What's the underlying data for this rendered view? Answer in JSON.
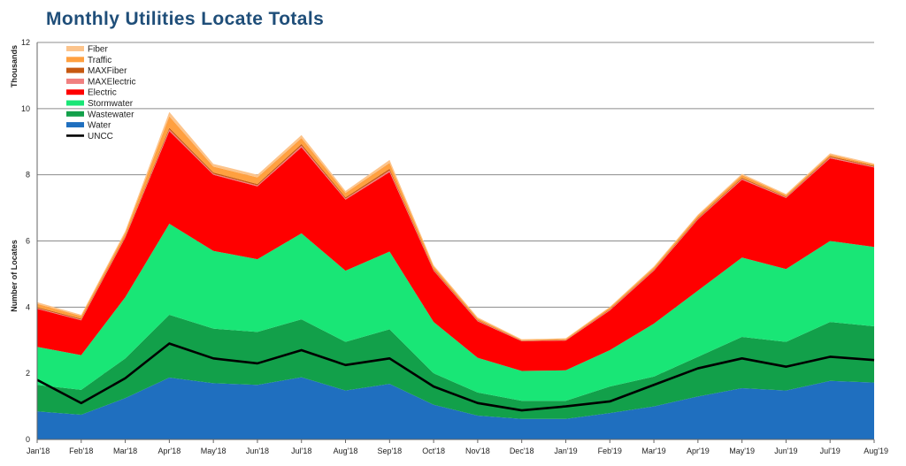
{
  "chart_data": {
    "type": "area",
    "stacked": true,
    "title": "Monthly Utilities Locate Totals",
    "xlabel": "",
    "ylabel": "Number of Locates",
    "y_unit_label": "Thousands",
    "ylim": [
      0,
      12
    ],
    "yticks": [
      0,
      2,
      4,
      6,
      8,
      10,
      12
    ],
    "grid": true,
    "legend_position": "top-left",
    "categories": [
      "Jan'18",
      "Feb'18",
      "Mar'18",
      "Apr'18",
      "May'18",
      "Jun'18",
      "Jul'18",
      "Aug'18",
      "Sep'18",
      "Oct'18",
      "Nov'18",
      "Dec'18",
      "Jan'19",
      "Feb'19",
      "Mar'19",
      "Apr'19",
      "May'19",
      "Jun'19",
      "Jul'19",
      "Aug'19"
    ],
    "series": [
      {
        "name": "Water",
        "color": "#1f6fbf",
        "values": [
          0.85,
          0.75,
          1.25,
          1.87,
          1.7,
          1.65,
          1.88,
          1.48,
          1.68,
          1.05,
          0.72,
          0.62,
          0.62,
          0.8,
          1.0,
          1.3,
          1.55,
          1.48,
          1.77,
          1.72
        ]
      },
      {
        "name": "Wastewater",
        "color": "#12a04a",
        "values": [
          0.8,
          0.75,
          1.2,
          1.9,
          1.65,
          1.6,
          1.75,
          1.47,
          1.65,
          0.95,
          0.7,
          0.55,
          0.55,
          0.8,
          0.9,
          1.2,
          1.55,
          1.47,
          1.78,
          1.7
        ]
      },
      {
        "name": "Stormwater",
        "color": "#19e676",
        "values": [
          1.15,
          1.05,
          1.85,
          2.75,
          2.35,
          2.2,
          2.6,
          2.15,
          2.35,
          1.55,
          1.05,
          0.9,
          0.92,
          1.1,
          1.6,
          2.0,
          2.4,
          2.2,
          2.45,
          2.4
        ]
      },
      {
        "name": "Electric",
        "color": "#ff0000",
        "values": [
          1.15,
          1.05,
          1.8,
          2.8,
          2.3,
          2.2,
          2.6,
          2.15,
          2.4,
          1.55,
          1.1,
          0.9,
          0.9,
          1.2,
          1.6,
          2.15,
          2.35,
          2.15,
          2.5,
          2.4
        ]
      },
      {
        "name": "MAXElectric",
        "color": "#f08080",
        "values": [
          0.02,
          0.02,
          0.02,
          0.05,
          0.03,
          0.03,
          0.05,
          0.03,
          0.05,
          0.02,
          0.02,
          0.01,
          0.01,
          0.02,
          0.02,
          0.02,
          0.03,
          0.02,
          0.03,
          0.02
        ]
      },
      {
        "name": "MAXFiber",
        "color": "#c65911",
        "values": [
          0.03,
          0.03,
          0.03,
          0.05,
          0.04,
          0.04,
          0.05,
          0.04,
          0.05,
          0.03,
          0.02,
          0.01,
          0.01,
          0.02,
          0.02,
          0.03,
          0.03,
          0.02,
          0.03,
          0.03
        ]
      },
      {
        "name": "Traffic",
        "color": "#ffa040",
        "values": [
          0.1,
          0.08,
          0.1,
          0.35,
          0.18,
          0.2,
          0.18,
          0.13,
          0.18,
          0.08,
          0.05,
          0.02,
          0.03,
          0.05,
          0.06,
          0.07,
          0.08,
          0.05,
          0.05,
          0.04
        ]
      },
      {
        "name": "Fiber",
        "color": "#fcc48c",
        "values": [
          0.05,
          0.04,
          0.05,
          0.13,
          0.08,
          0.08,
          0.09,
          0.06,
          0.09,
          0.04,
          0.03,
          0.02,
          0.02,
          0.02,
          0.03,
          0.03,
          0.04,
          0.03,
          0.04,
          0.03
        ]
      }
    ],
    "line_series": {
      "name": "UNCC",
      "color": "#000000",
      "values": [
        1.8,
        1.1,
        1.85,
        2.9,
        2.45,
        2.3,
        2.7,
        2.25,
        2.45,
        1.6,
        1.1,
        0.88,
        1.0,
        1.15,
        1.65,
        2.15,
        2.45,
        2.2,
        2.5,
        2.4
      ]
    },
    "legend_order": [
      "Fiber",
      "Traffic",
      "MAXFiber",
      "MAXElectric",
      "Electric",
      "Stormwater",
      "Wastewater",
      "Water",
      "UNCC"
    ]
  }
}
